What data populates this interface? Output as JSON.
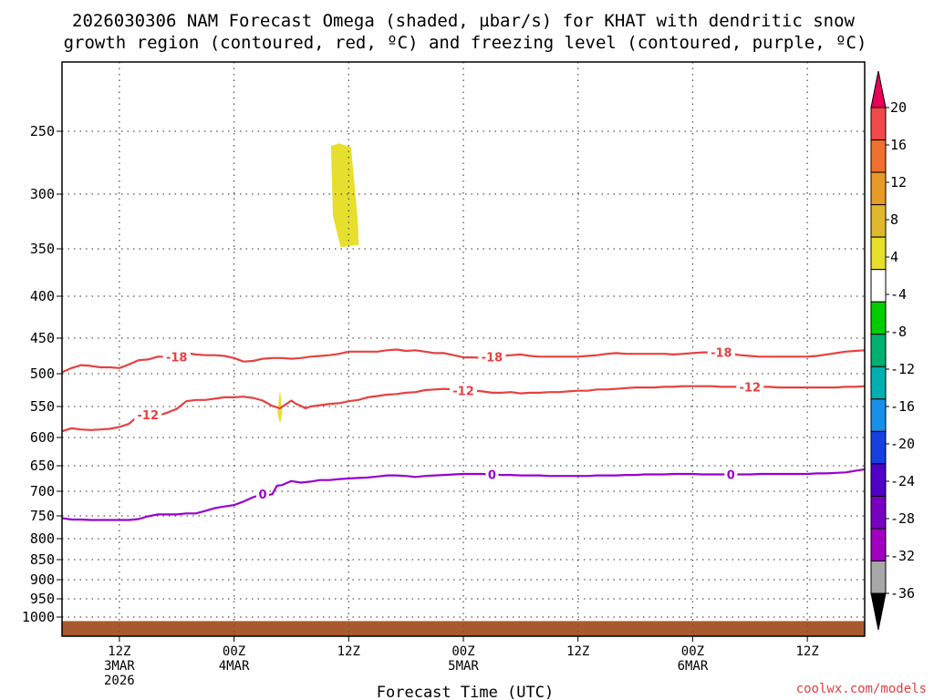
{
  "title_line1": "2026030306 NAM Forecast Omega (shaded, µbar/s) for KHAT with dendritic snow",
  "title_line2": "growth region (contoured, red, ºC) and freezing level (contoured, purple, ºC)",
  "credit": "coolwx.com/models",
  "chart_data": {
    "type": "time-height contour",
    "xlabel": "Forecast Time (UTC)",
    "x_range_hours": [
      0,
      84
    ],
    "x_ticks": [
      {
        "hour": 6,
        "line1": "12Z",
        "line2": "3MAR",
        "line3": "2026"
      },
      {
        "hour": 18,
        "line1": "00Z",
        "line2": "4MAR",
        "line3": ""
      },
      {
        "hour": 30,
        "line1": "12Z",
        "line2": "",
        "line3": ""
      },
      {
        "hour": 42,
        "line1": "00Z",
        "line2": "5MAR",
        "line3": ""
      },
      {
        "hour": 54,
        "line1": "12Z",
        "line2": "",
        "line3": ""
      },
      {
        "hour": 66,
        "line1": "00Z",
        "line2": "6MAR",
        "line3": ""
      },
      {
        "hour": 78,
        "line1": "12Z",
        "line2": "",
        "line3": ""
      }
    ],
    "y_range_hpa": [
      1050,
      200
    ],
    "y_ticks": [
      "250",
      "300",
      "350",
      "400",
      "450",
      "500",
      "550",
      "600",
      "650",
      "700",
      "750",
      "800",
      "850",
      "900",
      "950",
      "1000"
    ],
    "colorbar": {
      "labels": [
        "20",
        "16",
        "12",
        "8",
        "4",
        "-4",
        "-8",
        "-12",
        "-16",
        "-20",
        "-24",
        "-28",
        "-32",
        "-36"
      ],
      "colors": [
        "#e8005a",
        "#f04a4a",
        "#f07030",
        "#e89a28",
        "#e0b830",
        "#e6df2e",
        "#ffffff",
        "#00cc00",
        "#00b070",
        "#00b0b0",
        "#1890e8",
        "#1840e0",
        "#5000c8",
        "#7800c0",
        "#a000c0",
        "#a8a8a8",
        "#000000"
      ]
    },
    "shading": [
      {
        "name": "omega-4-8-upper",
        "color": "#e6df2e",
        "points": [
          [
            28.2,
            262
          ],
          [
            29.0,
            260
          ],
          [
            30.2,
            263
          ],
          [
            30.9,
            323
          ],
          [
            31.0,
            346
          ],
          [
            30.0,
            347
          ],
          [
            29.2,
            348
          ],
          [
            28.4,
            320
          ]
        ]
      },
      {
        "name": "omega-4-8-spike",
        "color": "#e6df2e",
        "points": [
          [
            22.6,
            560
          ],
          [
            22.8,
            530
          ],
          [
            23.0,
            560
          ],
          [
            22.8,
            575
          ]
        ]
      }
    ],
    "contours": [
      {
        "name": "isotherm-minus18",
        "value": "-18",
        "color": "#e84040",
        "points": [
          [
            0,
            498
          ],
          [
            1,
            492
          ],
          [
            2,
            488
          ],
          [
            3,
            489
          ],
          [
            4,
            491
          ],
          [
            5,
            491
          ],
          [
            6,
            492
          ],
          [
            7,
            487
          ],
          [
            8,
            481
          ],
          [
            9,
            480
          ],
          [
            10,
            476
          ],
          [
            11,
            476
          ],
          [
            12,
            473
          ],
          [
            13,
            471
          ],
          [
            14,
            473
          ],
          [
            15,
            474
          ],
          [
            16,
            474
          ],
          [
            17,
            475
          ],
          [
            18,
            478
          ],
          [
            19,
            483
          ],
          [
            20,
            482
          ],
          [
            21,
            479
          ],
          [
            22,
            478
          ],
          [
            23,
            478
          ],
          [
            24,
            479
          ],
          [
            25,
            478
          ],
          [
            26,
            476
          ],
          [
            27,
            475
          ],
          [
            28,
            474
          ],
          [
            29,
            472
          ],
          [
            30,
            469
          ],
          [
            31,
            469
          ],
          [
            32,
            469
          ],
          [
            33,
            469
          ],
          [
            34,
            467
          ],
          [
            35,
            466
          ],
          [
            36,
            468
          ],
          [
            37,
            467
          ],
          [
            38,
            469
          ],
          [
            39,
            471
          ],
          [
            40,
            471
          ],
          [
            41,
            474
          ],
          [
            42,
            477
          ],
          [
            43,
            477
          ],
          [
            44,
            478
          ],
          [
            45,
            476
          ],
          [
            46,
            475
          ],
          [
            47,
            474
          ],
          [
            48,
            473
          ],
          [
            49,
            475
          ],
          [
            50,
            476
          ],
          [
            51,
            476
          ],
          [
            52,
            476
          ],
          [
            53,
            476
          ],
          [
            54,
            476
          ],
          [
            55,
            475
          ],
          [
            56,
            474
          ],
          [
            57,
            472
          ],
          [
            58,
            471
          ],
          [
            59,
            472
          ],
          [
            60,
            472
          ],
          [
            61,
            472
          ],
          [
            62,
            472
          ],
          [
            63,
            472
          ],
          [
            64,
            473
          ],
          [
            65,
            472
          ],
          [
            66,
            471
          ],
          [
            67,
            470
          ],
          [
            68,
            470
          ],
          [
            69,
            471
          ],
          [
            70,
            472
          ],
          [
            71,
            474
          ],
          [
            72,
            475
          ],
          [
            73,
            476
          ],
          [
            74,
            476
          ],
          [
            75,
            476
          ],
          [
            76,
            476
          ],
          [
            77,
            476
          ],
          [
            78,
            476
          ],
          [
            79,
            475
          ],
          [
            80,
            473
          ],
          [
            81,
            471
          ],
          [
            82,
            469
          ],
          [
            83,
            468
          ],
          [
            84,
            467
          ]
        ],
        "labels": [
          [
            12,
            476
          ],
          [
            45,
            476
          ],
          [
            69,
            470
          ]
        ]
      },
      {
        "name": "isotherm-minus12",
        "value": "-12",
        "color": "#e84040",
        "points": [
          [
            0,
            590
          ],
          [
            1,
            585
          ],
          [
            2,
            587
          ],
          [
            3,
            588
          ],
          [
            4,
            587
          ],
          [
            5,
            586
          ],
          [
            6,
            583
          ],
          [
            7,
            578
          ],
          [
            8,
            565
          ],
          [
            9,
            563
          ],
          [
            10,
            565
          ],
          [
            11,
            560
          ],
          [
            12,
            554
          ],
          [
            13,
            542
          ],
          [
            14,
            540
          ],
          [
            15,
            540
          ],
          [
            16,
            538
          ],
          [
            17,
            536
          ],
          [
            18,
            536
          ],
          [
            19,
            535
          ],
          [
            20,
            537
          ],
          [
            21,
            541
          ],
          [
            22,
            549
          ],
          [
            22.8,
            553
          ],
          [
            23.5,
            546
          ],
          [
            24,
            541
          ],
          [
            24.5,
            546
          ],
          [
            25,
            549
          ],
          [
            25.5,
            553
          ],
          [
            26,
            550
          ],
          [
            27,
            548
          ],
          [
            28,
            546
          ],
          [
            29,
            545
          ],
          [
            30,
            542
          ],
          [
            31,
            540
          ],
          [
            32,
            536
          ],
          [
            33,
            534
          ],
          [
            34,
            532
          ],
          [
            35,
            531
          ],
          [
            36,
            529
          ],
          [
            37,
            528
          ],
          [
            38,
            525
          ],
          [
            39,
            524
          ],
          [
            40,
            523
          ],
          [
            41,
            524
          ],
          [
            42,
            526
          ],
          [
            43,
            526
          ],
          [
            44,
            527
          ],
          [
            45,
            529
          ],
          [
            46,
            529
          ],
          [
            47,
            528
          ],
          [
            48,
            530
          ],
          [
            49,
            529
          ],
          [
            50,
            529
          ],
          [
            51,
            528
          ],
          [
            52,
            528
          ],
          [
            53,
            527
          ],
          [
            54,
            526
          ],
          [
            55,
            526
          ],
          [
            56,
            524
          ],
          [
            57,
            524
          ],
          [
            58,
            523
          ],
          [
            59,
            522
          ],
          [
            60,
            521
          ],
          [
            61,
            521
          ],
          [
            62,
            521
          ],
          [
            63,
            520
          ],
          [
            64,
            520
          ],
          [
            65,
            519
          ],
          [
            66,
            519
          ],
          [
            67,
            519
          ],
          [
            68,
            519
          ],
          [
            69,
            520
          ],
          [
            70,
            520
          ],
          [
            71,
            520
          ],
          [
            72,
            520
          ],
          [
            73,
            520
          ],
          [
            74,
            520
          ],
          [
            75,
            521
          ],
          [
            76,
            521
          ],
          [
            77,
            521
          ],
          [
            78,
            521
          ],
          [
            79,
            521
          ],
          [
            80,
            521
          ],
          [
            81,
            521
          ],
          [
            82,
            520
          ],
          [
            83,
            520
          ],
          [
            84,
            519
          ]
        ],
        "labels": [
          [
            9,
            563
          ],
          [
            42,
            526
          ],
          [
            72,
            520
          ]
        ]
      },
      {
        "name": "freezing-level-0C",
        "value": "0",
        "color": "#9900cc",
        "points": [
          [
            0,
            755
          ],
          [
            1,
            758
          ],
          [
            2,
            758
          ],
          [
            3,
            759
          ],
          [
            4,
            759
          ],
          [
            5,
            759
          ],
          [
            6,
            759
          ],
          [
            7,
            759
          ],
          [
            8,
            757
          ],
          [
            9,
            751
          ],
          [
            10,
            747
          ],
          [
            11,
            747
          ],
          [
            12,
            747
          ],
          [
            13,
            745
          ],
          [
            14,
            745
          ],
          [
            15,
            740
          ],
          [
            16,
            734
          ],
          [
            17,
            731
          ],
          [
            18,
            728
          ],
          [
            19,
            721
          ],
          [
            20,
            712
          ],
          [
            21,
            706
          ],
          [
            21.5,
            708
          ],
          [
            22,
            706
          ],
          [
            22.5,
            689
          ],
          [
            23,
            688
          ],
          [
            23.5,
            684
          ],
          [
            24,
            680
          ],
          [
            25,
            683
          ],
          [
            26,
            681
          ],
          [
            27,
            678
          ],
          [
            28,
            678
          ],
          [
            29,
            676
          ],
          [
            30,
            675
          ],
          [
            31,
            674
          ],
          [
            32,
            673
          ],
          [
            33,
            671
          ],
          [
            34,
            669
          ],
          [
            35,
            669
          ],
          [
            36,
            670
          ],
          [
            37,
            672
          ],
          [
            38,
            670
          ],
          [
            39,
            669
          ],
          [
            40,
            668
          ],
          [
            41,
            667
          ],
          [
            42,
            666
          ],
          [
            43,
            666
          ],
          [
            44,
            666
          ],
          [
            45,
            667
          ],
          [
            46,
            668
          ],
          [
            47,
            668
          ],
          [
            48,
            669
          ],
          [
            49,
            669
          ],
          [
            50,
            669
          ],
          [
            51,
            670
          ],
          [
            52,
            670
          ],
          [
            53,
            670
          ],
          [
            54,
            670
          ],
          [
            55,
            670
          ],
          [
            56,
            669
          ],
          [
            57,
            669
          ],
          [
            58,
            669
          ],
          [
            59,
            668
          ],
          [
            60,
            668
          ],
          [
            61,
            667
          ],
          [
            62,
            667
          ],
          [
            63,
            667
          ],
          [
            64,
            666
          ],
          [
            65,
            666
          ],
          [
            66,
            666
          ],
          [
            67,
            667
          ],
          [
            68,
            667
          ],
          [
            69,
            667
          ],
          [
            70,
            667
          ],
          [
            71,
            667
          ],
          [
            72,
            667
          ],
          [
            73,
            666
          ],
          [
            74,
            666
          ],
          [
            75,
            666
          ],
          [
            76,
            666
          ],
          [
            77,
            666
          ],
          [
            78,
            666
          ],
          [
            79,
            665
          ],
          [
            80,
            665
          ],
          [
            81,
            664
          ],
          [
            82,
            663
          ],
          [
            83,
            660
          ],
          [
            84,
            657
          ]
        ],
        "labels": [
          [
            21,
            706
          ],
          [
            45,
            667
          ],
          [
            70,
            667
          ]
        ]
      }
    ],
    "ground": {
      "color": "#a85a2e",
      "pressure_hpa": 1020
    }
  }
}
